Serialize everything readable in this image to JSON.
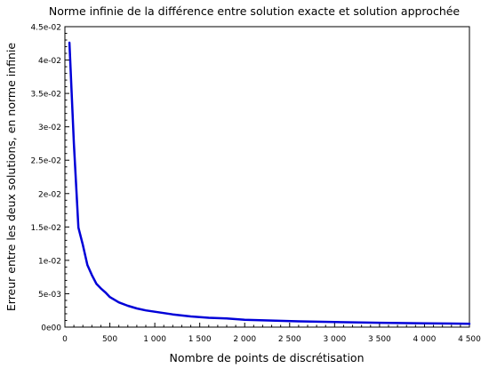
{
  "chart_data": {
    "type": "line",
    "title": "Norme infinie de la différence entre solution exacte et solution approchée",
    "xlabel": "Nombre de points de discrétisation",
    "ylabel": "Erreur entre les deux solutions, en norme infinie",
    "xlim": [
      0,
      4500
    ],
    "ylim": [
      0,
      0.045
    ],
    "x_ticks": [
      {
        "value": 0,
        "label": "0"
      },
      {
        "value": 500,
        "label": "500"
      },
      {
        "value": 1000,
        "label": "1 000"
      },
      {
        "value": 1500,
        "label": "1 500"
      },
      {
        "value": 2000,
        "label": "2 000"
      },
      {
        "value": 2500,
        "label": "2 500"
      },
      {
        "value": 3000,
        "label": "3 000"
      },
      {
        "value": 3500,
        "label": "3 500"
      },
      {
        "value": 4000,
        "label": "4 000"
      },
      {
        "value": 4500,
        "label": "4 500"
      }
    ],
    "y_ticks": [
      {
        "value": 0,
        "label": "0e00"
      },
      {
        "value": 0.005,
        "label": "5e-03"
      },
      {
        "value": 0.01,
        "label": "1e-02"
      },
      {
        "value": 0.015,
        "label": "1.5e-02"
      },
      {
        "value": 0.02,
        "label": "2e-02"
      },
      {
        "value": 0.025,
        "label": "2.5e-02"
      },
      {
        "value": 0.03,
        "label": "3e-02"
      },
      {
        "value": 0.035,
        "label": "3.5e-02"
      },
      {
        "value": 0.04,
        "label": "4e-02"
      },
      {
        "value": 0.045,
        "label": "4.5e-02"
      }
    ],
    "grid": false,
    "series": [
      {
        "color": "#0000d8",
        "x": [
          50,
          100,
          150,
          200,
          250,
          300,
          350,
          400,
          450,
          500,
          600,
          700,
          800,
          900,
          1000,
          1200,
          1400,
          1600,
          1800,
          2000,
          2300,
          2600,
          3000,
          3500,
          4000,
          4500
        ],
        "y": [
          0.0426,
          0.0275,
          0.0149,
          0.0123,
          0.0093,
          0.0078,
          0.0065,
          0.0058,
          0.0052,
          0.0045,
          0.0037,
          0.0032,
          0.0028,
          0.0025,
          0.0023,
          0.0019,
          0.0016,
          0.0014,
          0.0013,
          0.0011,
          0.00098,
          0.00087,
          0.00076,
          0.00065,
          0.00057,
          0.00051
        ]
      }
    ]
  }
}
